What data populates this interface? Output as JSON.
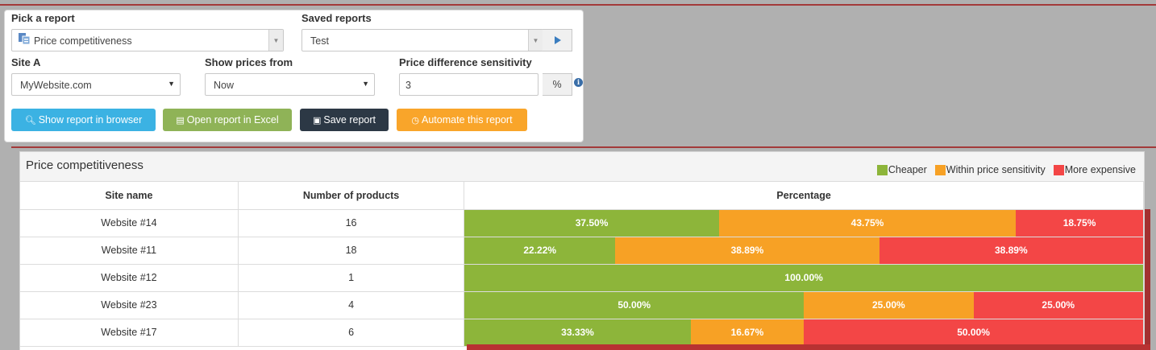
{
  "form": {
    "pick_report_label": "Pick a report",
    "pick_report_value": "Price competitiveness",
    "saved_reports_label": "Saved reports",
    "saved_reports_value": "Test",
    "site_a_label": "Site A",
    "site_a_value": "MyWebsite.com",
    "show_prices_label": "Show prices from",
    "show_prices_value": "Now",
    "sensitivity_label": "Price difference sensitivity",
    "sensitivity_value": "3",
    "sensitivity_unit": "%",
    "buttons": {
      "show_browser": "Show report in browser",
      "open_excel": "Open report in Excel",
      "save": "Save report",
      "automate": "Automate this report"
    }
  },
  "report": {
    "title": "Price competitiveness",
    "legend": [
      {
        "label": "Cheaper",
        "color": "#8db53a"
      },
      {
        "label": "Within price sensitivity",
        "color": "#f7a125"
      },
      {
        "label": "More expensive",
        "color": "#f34646"
      }
    ],
    "columns": [
      "Site name",
      "Number of products",
      "Percentage"
    ],
    "rows": [
      {
        "site": "Website #14",
        "count": "16",
        "segments": [
          {
            "label": "37.50%",
            "value": 37.5,
            "kind": "cheaper"
          },
          {
            "label": "43.75%",
            "value": 43.75,
            "kind": "within"
          },
          {
            "label": "18.75%",
            "value": 18.75,
            "kind": "expensive"
          }
        ]
      },
      {
        "site": "Website #11",
        "count": "18",
        "segments": [
          {
            "label": "22.22%",
            "value": 22.22,
            "kind": "cheaper"
          },
          {
            "label": "38.89%",
            "value": 38.89,
            "kind": "within"
          },
          {
            "label": "38.89%",
            "value": 38.89,
            "kind": "expensive"
          }
        ]
      },
      {
        "site": "Website #12",
        "count": "1",
        "segments": [
          {
            "label": "100.00%",
            "value": 100,
            "kind": "cheaper"
          }
        ]
      },
      {
        "site": "Website #23",
        "count": "4",
        "segments": [
          {
            "label": "50.00%",
            "value": 50,
            "kind": "cheaper"
          },
          {
            "label": "25.00%",
            "value": 25,
            "kind": "within"
          },
          {
            "label": "25.00%",
            "value": 25,
            "kind": "expensive"
          }
        ]
      },
      {
        "site": "Website #17",
        "count": "6",
        "segments": [
          {
            "label": "33.33%",
            "value": 33.33,
            "kind": "cheaper"
          },
          {
            "label": "16.67%",
            "value": 16.67,
            "kind": "within"
          },
          {
            "label": "50.00%",
            "value": 50,
            "kind": "expensive"
          }
        ]
      }
    ]
  },
  "colors": {
    "cheaper": "#8db53a",
    "within": "#f7a125",
    "expensive": "#f34646",
    "btn_browser": "#3bb2e3",
    "btn_excel": "#8fb357",
    "btn_save": "#2c3845",
    "btn_automate": "#f9a52a"
  }
}
